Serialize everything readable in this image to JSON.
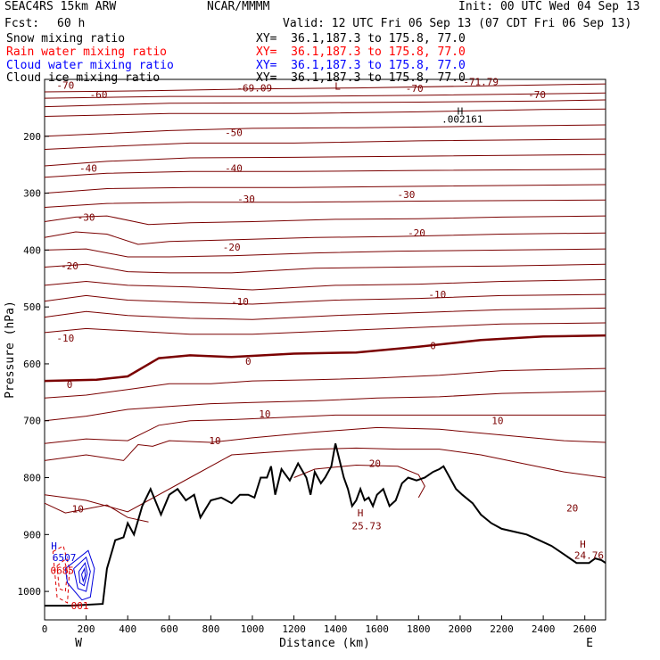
{
  "header": {
    "model": "SEAC4RS 15km ARW",
    "org": "NCAR/MMMM",
    "init": "Init: 00 UTC Wed 04 Sep 13",
    "fcst_label": "Fcst:",
    "fcst_value": "60 h",
    "valid": "Valid: 12 UTC Fri 06 Sep 13 (07 CDT Fri 06 Sep 13)",
    "fields": [
      {
        "name": "Snow mixing ratio",
        "xy": "XY=  36.1,187.3 to 175.8, 77.0",
        "color": "#000000"
      },
      {
        "name": "Rain water mixing ratio",
        "xy": "XY=  36.1,187.3 to 175.8, 77.0",
        "color": "#ff0000"
      },
      {
        "name": "Cloud water mixing ratio",
        "xy": "XY=  36.1,187.3 to 175.8, 77.0",
        "color": "#0000ff"
      },
      {
        "name": "Cloud ice mixing ratio",
        "xy": "XY=  36.1,187.3 to 175.8, 77.0",
        "color": "#000000"
      }
    ]
  },
  "chart_data": {
    "type": "line",
    "xlabel": "Distance (km)",
    "ylabel": "Pressure (hPa)",
    "xlim": [
      0,
      2700
    ],
    "ylim": [
      100,
      1050
    ],
    "y_reversed": true,
    "x_ticks": [
      0,
      200,
      400,
      600,
      800,
      1000,
      1200,
      1400,
      1600,
      1800,
      2000,
      2200,
      2400,
      2600
    ],
    "y_ticks": [
      200,
      300,
      400,
      500,
      600,
      700,
      800,
      900,
      1000
    ],
    "x_end_labels": {
      "left": "W",
      "right": "E"
    },
    "colors": {
      "temperature": "#7a0000",
      "terrain": "#000000",
      "rain": "#dd0000",
      "cloud": "#0000dd"
    },
    "terrain": {
      "x": [
        0,
        120,
        280,
        300,
        340,
        380,
        400,
        430,
        470,
        510,
        560,
        600,
        640,
        680,
        720,
        750,
        800,
        850,
        900,
        940,
        980,
        1010,
        1040,
        1070,
        1090,
        1110,
        1140,
        1180,
        1220,
        1260,
        1280,
        1300,
        1330,
        1350,
        1380,
        1400,
        1420,
        1440,
        1460,
        1480,
        1500,
        1520,
        1540,
        1560,
        1580,
        1600,
        1630,
        1660,
        1690,
        1720,
        1750,
        1790,
        1830,
        1870,
        1900,
        1920,
        1950,
        1980,
        2010,
        2060,
        2100,
        2150,
        2200,
        2260,
        2320,
        2380,
        2440,
        2500,
        2560,
        2620,
        2650,
        2680,
        2700
      ],
      "p": [
        1025,
        1025,
        1022,
        960,
        910,
        905,
        880,
        900,
        850,
        820,
        865,
        830,
        820,
        840,
        830,
        870,
        840,
        835,
        845,
        830,
        830,
        835,
        800,
        800,
        780,
        830,
        785,
        805,
        775,
        800,
        830,
        790,
        810,
        800,
        780,
        740,
        770,
        800,
        820,
        850,
        840,
        820,
        840,
        835,
        850,
        830,
        820,
        850,
        840,
        810,
        800,
        805,
        800,
        790,
        785,
        780,
        800,
        820,
        830,
        845,
        865,
        880,
        890,
        895,
        900,
        910,
        920,
        935,
        950,
        950,
        942,
        945,
        950
      ]
    },
    "temperature_isotherms": [
      {
        "label": "-70",
        "x": [
          0,
          500,
          1000,
          1500,
          2000,
          2700
        ],
        "p": [
          122,
          120,
          117,
          115,
          112,
          108
        ]
      },
      {
        "label": "-69.09",
        "x": [
          0,
          600,
          1200,
          1800,
          2700
        ],
        "p": [
          133,
          130,
          130,
          128,
          124
        ]
      },
      {
        "label": "-60",
        "x": [
          0,
          600,
          1200,
          1800,
          2400,
          2700
        ],
        "p": [
          148,
          142,
          141,
          140,
          138,
          136
        ]
      },
      {
        "label": "-60",
        "x": [
          0,
          600,
          1200,
          1800,
          2400,
          2700
        ],
        "p": [
          165,
          160,
          160,
          157,
          153,
          152
        ]
      },
      {
        "label": "-50",
        "x": [
          0,
          300,
          600,
          1000,
          1500,
          2000,
          2700
        ],
        "p": [
          200,
          195,
          190,
          186,
          185,
          183,
          180
        ]
      },
      {
        "label": "-50",
        "x": [
          0,
          300,
          700,
          1200,
          1800,
          2700
        ],
        "p": [
          223,
          218,
          212,
          212,
          208,
          205
        ]
      },
      {
        "label": "-40",
        "x": [
          0,
          300,
          700,
          1200,
          1800,
          2700
        ],
        "p": [
          252,
          244,
          238,
          237,
          235,
          232
        ]
      },
      {
        "label": "-40",
        "x": [
          0,
          300,
          700,
          1200,
          1800,
          2700
        ],
        "p": [
          272,
          265,
          262,
          262,
          260,
          258
        ]
      },
      {
        "label": "-30",
        "x": [
          0,
          300,
          700,
          1200,
          1800,
          2700
        ],
        "p": [
          300,
          292,
          290,
          290,
          288,
          285
        ]
      },
      {
        "label": "-30",
        "x": [
          0,
          300,
          700,
          1200,
          1800,
          2700
        ],
        "p": [
          325,
          318,
          316,
          316,
          314,
          312
        ]
      },
      {
        "label": "-30",
        "x": [
          0,
          150,
          300,
          500,
          700,
          1000,
          1400,
          1800,
          2200,
          2700
        ],
        "p": [
          350,
          342,
          340,
          355,
          352,
          350,
          346,
          345,
          342,
          340
        ]
      },
      {
        "label": "-20",
        "x": [
          0,
          150,
          300,
          450,
          600,
          900,
          1300,
          1700,
          2200,
          2700
        ],
        "p": [
          378,
          368,
          372,
          390,
          385,
          382,
          378,
          376,
          372,
          370
        ]
      },
      {
        "label": "-20",
        "x": [
          0,
          200,
          400,
          600,
          900,
          1300,
          1700,
          2200,
          2700
        ],
        "p": [
          400,
          398,
          412,
          412,
          410,
          405,
          402,
          400,
          398
        ]
      },
      {
        "label": "-20",
        "x": [
          0,
          200,
          400,
          600,
          900,
          1300,
          1700,
          2200,
          2700
        ],
        "p": [
          430,
          425,
          438,
          440,
          440,
          432,
          430,
          428,
          425
        ]
      },
      {
        "label": "-10",
        "x": [
          0,
          200,
          400,
          700,
          1000,
          1400,
          1800,
          2200,
          2700
        ],
        "p": [
          462,
          455,
          462,
          465,
          470,
          462,
          460,
          455,
          452
        ]
      },
      {
        "label": "-10",
        "x": [
          0,
          200,
          400,
          700,
          1000,
          1400,
          1800,
          2200,
          2700
        ],
        "p": [
          490,
          480,
          488,
          492,
          495,
          488,
          485,
          480,
          478
        ]
      },
      {
        "label": "-10",
        "x": [
          0,
          200,
          400,
          700,
          1000,
          1400,
          1800,
          2200,
          2700
        ],
        "p": [
          518,
          508,
          515,
          520,
          522,
          515,
          510,
          505,
          502
        ]
      },
      {
        "label": "-10",
        "x": [
          0,
          200,
          400,
          700,
          1000,
          1400,
          1800,
          2200,
          2700
        ],
        "p": [
          545,
          538,
          542,
          548,
          548,
          542,
          536,
          530,
          528
        ]
      },
      {
        "label": "0",
        "x": [
          0,
          250,
          400,
          550,
          700,
          900,
          1200,
          1500,
          1800,
          2100,
          2400,
          2700
        ],
        "p": [
          630,
          628,
          622,
          590,
          585,
          588,
          582,
          580,
          570,
          558,
          552,
          550
        ],
        "bold": true
      },
      {
        "label": "0",
        "x": [
          0,
          200,
          400,
          600,
          800,
          1000,
          1300,
          1600,
          1900,
          2200,
          2700
        ],
        "p": [
          660,
          655,
          645,
          635,
          635,
          630,
          628,
          625,
          620,
          612,
          608
        ]
      },
      {
        "label": "10",
        "x": [
          0,
          200,
          400,
          600,
          800,
          1000,
          1300,
          1600,
          1900,
          2200,
          2700
        ],
        "p": [
          700,
          692,
          680,
          675,
          670,
          668,
          665,
          660,
          658,
          652,
          648
        ]
      },
      {
        "label": "10",
        "x": [
          0,
          200,
          400,
          550,
          700,
          900,
          1100,
          1400,
          1700,
          2000,
          2300,
          2700
        ],
        "p": [
          740,
          732,
          735,
          708,
          700,
          698,
          695,
          690,
          690,
          690,
          690,
          690
        ]
      },
      {
        "label": "10",
        "x": [
          0,
          200,
          380,
          450,
          520,
          600,
          800,
          1000,
          1300,
          1600,
          1900,
          2200,
          2500,
          2700
        ],
        "p": [
          770,
          760,
          770,
          742,
          745,
          735,
          738,
          730,
          720,
          712,
          715,
          725,
          735,
          738
        ]
      },
      {
        "label": "20",
        "x": [
          0,
          200,
          400,
          700,
          900,
          1100,
          1300,
          1500,
          1700,
          1900,
          2100,
          2300,
          2500,
          2700
        ],
        "p": [
          830,
          840,
          860,
          800,
          760,
          755,
          750,
          748,
          750,
          750,
          760,
          775,
          790,
          800
        ]
      },
      {
        "label": "20",
        "x": [
          1200,
          1300,
          1500,
          1700,
          1800,
          1830,
          1800
        ],
        "p": [
          800,
          785,
          778,
          780,
          795,
          815,
          835
        ]
      },
      {
        "label": "10",
        "x": [
          0,
          100,
          200,
          300,
          400,
          500
        ],
        "p": [
          845,
          862,
          855,
          848,
          870,
          878
        ]
      }
    ],
    "rain_contours": [
      {
        "x": [
          40,
          90,
          120,
          110,
          60,
          40
        ],
        "p": [
          930,
          920,
          960,
          1020,
          1010,
          930
        ]
      },
      {
        "x": [
          60,
          95,
          110,
          100,
          70,
          60
        ],
        "p": [
          955,
          945,
          965,
          1000,
          995,
          955
        ]
      }
    ],
    "cloud_contours": [
      {
        "x": [
          100,
          210,
          240,
          220,
          180,
          110,
          100
        ],
        "p": [
          960,
          928,
          960,
          1010,
          1015,
          985,
          960
        ]
      },
      {
        "x": [
          140,
          200,
          220,
          200,
          160,
          140
        ],
        "p": [
          960,
          940,
          965,
          1000,
          995,
          960
        ]
      },
      {
        "x": [
          165,
          195,
          205,
          190,
          170,
          165
        ],
        "p": [
          965,
          950,
          968,
          990,
          985,
          965
        ]
      },
      {
        "x": [
          178,
          192,
          196,
          186,
          178
        ],
        "p": [
          970,
          960,
          972,
          982,
          970
        ]
      }
    ],
    "annotations": [
      {
        "text": "-70",
        "x": 100,
        "p": 110,
        "color": "temperature"
      },
      {
        "text": "-69.09",
        "x": 1010,
        "p": 115,
        "color": "temperature"
      },
      {
        "text": "L",
        "x": 1410,
        "p": 112,
        "color": "temperature"
      },
      {
        "text": "-70",
        "x": 1780,
        "p": 116,
        "color": "temperature"
      },
      {
        "text": "-71.79",
        "x": 2100,
        "p": 104,
        "color": "temperature"
      },
      {
        "text": "-70",
        "x": 2370,
        "p": 127,
        "color": "temperature"
      },
      {
        "text": "-60",
        "x": 260,
        "p": 127,
        "color": "temperature"
      },
      {
        "text": "H",
        "x": 2000,
        "p": 156,
        "color": "terrain"
      },
      {
        "text": ".002161",
        "x": 2010,
        "p": 170,
        "color": "terrain"
      },
      {
        "text": "-50",
        "x": 910,
        "p": 193,
        "color": "temperature"
      },
      {
        "text": "-40",
        "x": 210,
        "p": 256,
        "color": "temperature"
      },
      {
        "text": "-40",
        "x": 910,
        "p": 256,
        "color": "temperature"
      },
      {
        "text": "-30",
        "x": 970,
        "p": 310,
        "color": "temperature"
      },
      {
        "text": "-30",
        "x": 1740,
        "p": 302,
        "color": "temperature"
      },
      {
        "text": "-30",
        "x": 200,
        "p": 342,
        "color": "temperature"
      },
      {
        "text": "-20",
        "x": 1790,
        "p": 370,
        "color": "temperature"
      },
      {
        "text": "-20",
        "x": 900,
        "p": 395,
        "color": "temperature"
      },
      {
        "text": "-20",
        "x": 120,
        "p": 428,
        "color": "temperature"
      },
      {
        "text": "-10",
        "x": 1890,
        "p": 478,
        "color": "temperature"
      },
      {
        "text": "-10",
        "x": 940,
        "p": 490,
        "color": "temperature"
      },
      {
        "text": "-10",
        "x": 100,
        "p": 555,
        "color": "temperature"
      },
      {
        "text": "0",
        "x": 1870,
        "p": 568,
        "color": "temperature"
      },
      {
        "text": "0",
        "x": 980,
        "p": 595,
        "color": "temperature"
      },
      {
        "text": "0",
        "x": 120,
        "p": 636,
        "color": "temperature"
      },
      {
        "text": "10",
        "x": 2180,
        "p": 700,
        "color": "temperature"
      },
      {
        "text": "10",
        "x": 1060,
        "p": 688,
        "color": "temperature"
      },
      {
        "text": "10",
        "x": 820,
        "p": 735,
        "color": "temperature"
      },
      {
        "text": "20",
        "x": 1590,
        "p": 775,
        "color": "temperature"
      },
      {
        "text": "20",
        "x": 2540,
        "p": 853,
        "color": "temperature"
      },
      {
        "text": "10",
        "x": 160,
        "p": 855,
        "color": "temperature"
      },
      {
        "text": "H",
        "x": 1520,
        "p": 862,
        "color": "temperature"
      },
      {
        "text": "25.73",
        "x": 1550,
        "p": 885,
        "color": "temperature"
      },
      {
        "text": "H",
        "x": 2590,
        "p": 917,
        "color": "temperature"
      },
      {
        "text": "24.76",
        "x": 2620,
        "p": 936,
        "color": "temperature"
      },
      {
        "text": "H",
        "x": 45,
        "p": 920,
        "color": "cloud"
      },
      {
        "text": "6507",
        "x": 95,
        "p": 940,
        "color": "cloud"
      },
      {
        "text": "0685",
        "x": 85,
        "p": 963,
        "color": "rain"
      },
      {
        "text": "001",
        "x": 170,
        "p": 1025,
        "color": "rain"
      }
    ]
  }
}
